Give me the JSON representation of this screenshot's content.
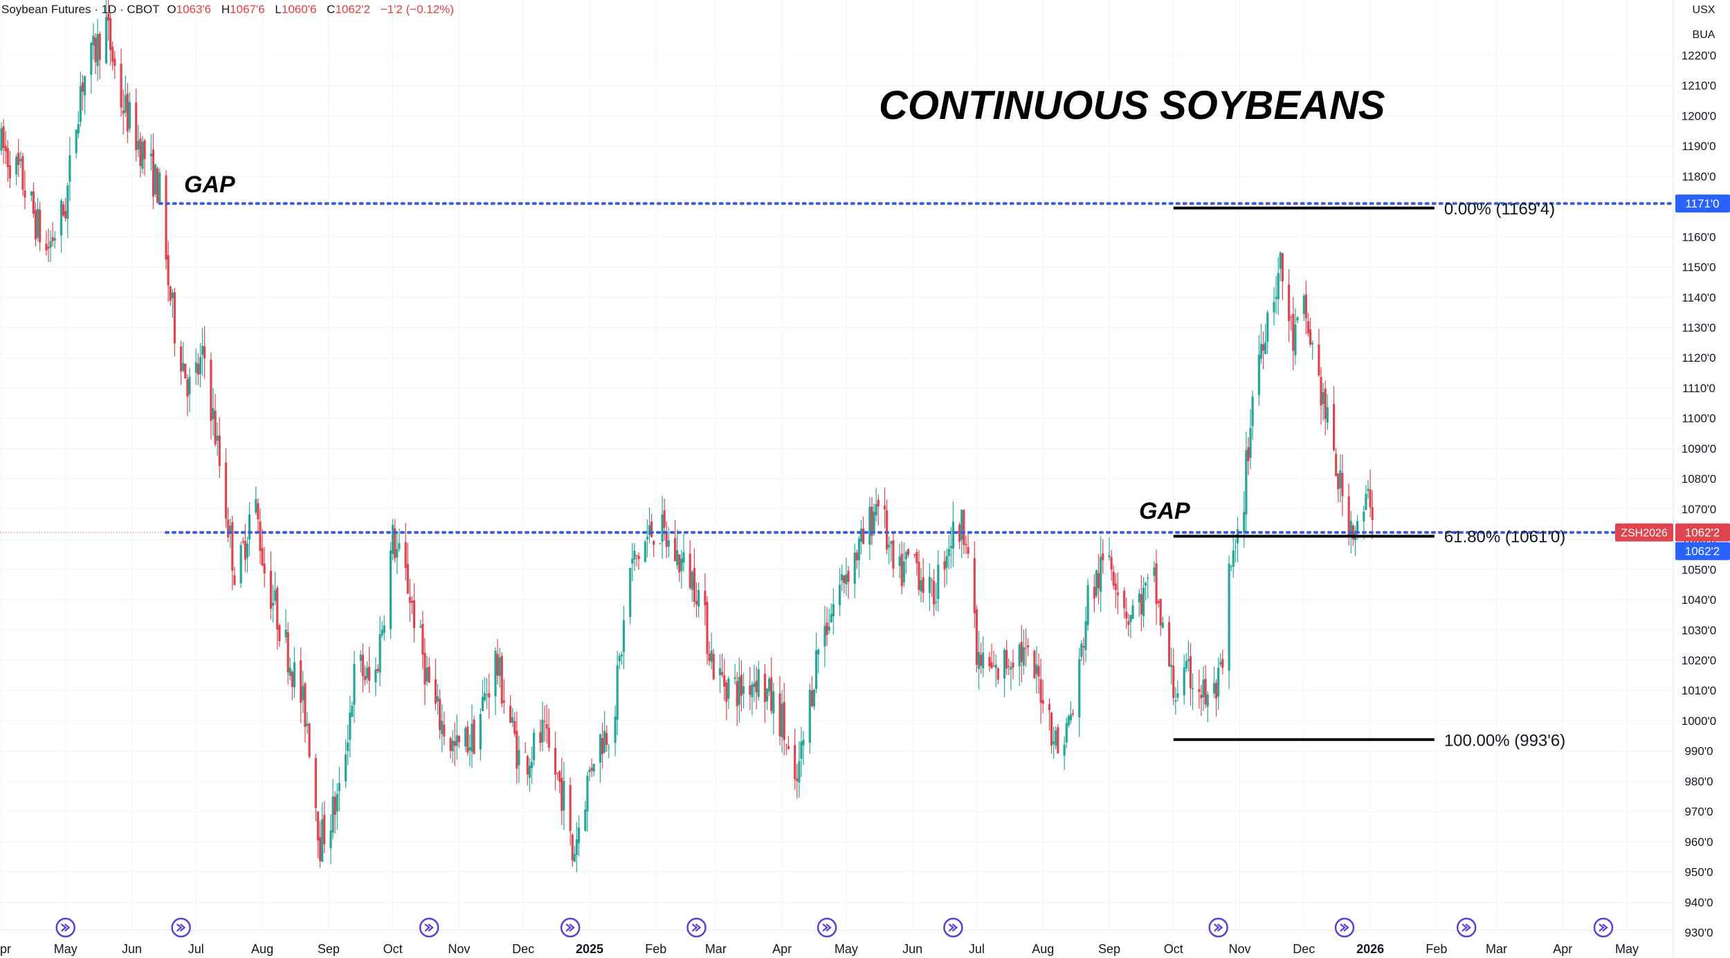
{
  "header": {
    "symbol": "Soybean Futures · 1D · CBOT",
    "open_label": "O",
    "open": "1063'6",
    "high_label": "H",
    "high": "1067'6",
    "low_label": "L",
    "low": "1060'6",
    "close_label": "C",
    "close": "1062'2",
    "change": "−1'2 (−0.12%)"
  },
  "scale_tags": {
    "currency": "USX",
    "unit": "BUA"
  },
  "colors": {
    "up": "#26a69a",
    "down": "#e0444e",
    "gap_line": "#3d5bd9",
    "fib_line": "#000000",
    "price_badge": "#e0444e",
    "blue_badge": "#2962ff",
    "event_icon": "#5b3fd6"
  },
  "chart_data": {
    "type": "candlestick",
    "title": "CONTINUOUS SOYBEANS",
    "y_axis": {
      "min": 930,
      "max": 1225,
      "side": "right",
      "ticks": [
        "1220'0",
        "1210'0",
        "1200'0",
        "1190'0",
        "1180'0",
        "1170'0",
        "1160'0",
        "1150'0",
        "1140'0",
        "1130'0",
        "1120'0",
        "1110'0",
        "1100'0",
        "1090'0",
        "1080'0",
        "1070'0",
        "1060'0",
        "1050'0",
        "1040'0",
        "1030'0",
        "1020'0",
        "1010'0",
        "1000'0",
        "990'0",
        "980'0",
        "970'0",
        "960'0",
        "950'0",
        "940'0",
        "930'0"
      ],
      "tick_values": [
        1220,
        1210,
        1200,
        1190,
        1180,
        1170,
        1160,
        1150,
        1140,
        1130,
        1120,
        1110,
        1100,
        1090,
        1080,
        1070,
        1060,
        1050,
        1040,
        1030,
        1020,
        1010,
        1000,
        990,
        980,
        970,
        960,
        950,
        940,
        930
      ]
    },
    "x_axis": {
      "start": "2024-04-01",
      "end": "2026-05-31",
      "labels": [
        {
          "text": "Apr",
          "date": "2024-04-01"
        },
        {
          "text": "May",
          "date": "2024-05-01"
        },
        {
          "text": "Jun",
          "date": "2024-06-01"
        },
        {
          "text": "Jul",
          "date": "2024-07-01"
        },
        {
          "text": "Aug",
          "date": "2024-08-01"
        },
        {
          "text": "Sep",
          "date": "2024-09-01"
        },
        {
          "text": "Oct",
          "date": "2024-10-01"
        },
        {
          "text": "Nov",
          "date": "2024-11-01"
        },
        {
          "text": "Dec",
          "date": "2024-12-01"
        },
        {
          "text": "2025",
          "date": "2025-01-01",
          "bold": true
        },
        {
          "text": "Feb",
          "date": "2025-02-01"
        },
        {
          "text": "Mar",
          "date": "2025-03-01"
        },
        {
          "text": "Apr",
          "date": "2025-04-01"
        },
        {
          "text": "May",
          "date": "2025-05-01"
        },
        {
          "text": "Jun",
          "date": "2025-06-01"
        },
        {
          "text": "Jul",
          "date": "2025-07-01"
        },
        {
          "text": "Aug",
          "date": "2025-08-01"
        },
        {
          "text": "Sep",
          "date": "2025-09-01"
        },
        {
          "text": "Oct",
          "date": "2025-10-01"
        },
        {
          "text": "Nov",
          "date": "2025-11-01"
        },
        {
          "text": "Dec",
          "date": "2025-12-01"
        },
        {
          "text": "2026",
          "date": "2026-01-01",
          "bold": true
        },
        {
          "text": "Feb",
          "date": "2026-02-01"
        },
        {
          "text": "Mar",
          "date": "2026-03-01"
        },
        {
          "text": "Apr",
          "date": "2026-04-01"
        },
        {
          "text": "May",
          "date": "2026-05-01"
        }
      ]
    },
    "path_anchors": [
      [
        "2024-04-01",
        1190
      ],
      [
        "2024-04-10",
        1180
      ],
      [
        "2024-04-22",
        1155
      ],
      [
        "2024-05-01",
        1170
      ],
      [
        "2024-05-08",
        1210
      ],
      [
        "2024-05-20",
        1230
      ],
      [
        "2024-05-27",
        1205
      ],
      [
        "2024-06-05",
        1190
      ],
      [
        "2024-06-14",
        1175
      ],
      [
        "2024-06-17",
        1150
      ],
      [
        "2024-06-21",
        1130
      ],
      [
        "2024-06-28",
        1110
      ],
      [
        "2024-07-05",
        1120
      ],
      [
        "2024-07-12",
        1085
      ],
      [
        "2024-07-20",
        1045
      ],
      [
        "2024-07-28",
        1075
      ],
      [
        "2024-08-02",
        1050
      ],
      [
        "2024-08-12",
        1025
      ],
      [
        "2024-08-22",
        1000
      ],
      [
        "2024-08-28",
        960
      ],
      [
        "2024-09-06",
        975
      ],
      [
        "2024-09-14",
        1020
      ],
      [
        "2024-09-22",
        1010
      ],
      [
        "2024-10-01",
        1060
      ],
      [
        "2024-10-08",
        1045
      ],
      [
        "2024-10-20",
        1005
      ],
      [
        "2024-10-30",
        990
      ],
      [
        "2024-11-08",
        995
      ],
      [
        "2024-11-18",
        1020
      ],
      [
        "2024-11-30",
        985
      ],
      [
        "2024-12-10",
        995
      ],
      [
        "2024-12-20",
        975
      ],
      [
        "2024-12-24",
        955
      ],
      [
        "2025-01-03",
        990
      ],
      [
        "2025-01-12",
        1000
      ],
      [
        "2025-01-20",
        1050
      ],
      [
        "2025-02-01",
        1065
      ],
      [
        "2025-02-10",
        1055
      ],
      [
        "2025-02-20",
        1045
      ],
      [
        "2025-03-01",
        1015
      ],
      [
        "2025-03-12",
        1010
      ],
      [
        "2025-03-20",
        1015
      ],
      [
        "2025-04-01",
        1000
      ],
      [
        "2025-04-07",
        975
      ],
      [
        "2025-04-18",
        1025
      ],
      [
        "2025-05-01",
        1050
      ],
      [
        "2025-05-10",
        1060
      ],
      [
        "2025-05-16",
        1075
      ],
      [
        "2025-05-24",
        1045
      ],
      [
        "2025-06-01",
        1055
      ],
      [
        "2025-06-10",
        1040
      ],
      [
        "2025-06-18",
        1060
      ],
      [
        "2025-06-26",
        1065
      ],
      [
        "2025-07-01",
        1020
      ],
      [
        "2025-07-10",
        1015
      ],
      [
        "2025-07-20",
        1025
      ],
      [
        "2025-08-01",
        1010
      ],
      [
        "2025-08-08",
        990
      ],
      [
        "2025-08-16",
        1005
      ],
      [
        "2025-08-22",
        1040
      ],
      [
        "2025-09-01",
        1055
      ],
      [
        "2025-09-10",
        1035
      ],
      [
        "2025-09-22",
        1045
      ],
      [
        "2025-10-01",
        1010
      ],
      [
        "2025-10-10",
        1015
      ],
      [
        "2025-10-18",
        1005
      ],
      [
        "2025-10-24",
        1015
      ],
      [
        "2025-10-26",
        1045
      ],
      [
        "2025-11-01",
        1060
      ],
      [
        "2025-11-03",
        1075
      ],
      [
        "2025-11-08",
        1115
      ],
      [
        "2025-11-14",
        1135
      ],
      [
        "2025-11-20",
        1150
      ],
      [
        "2025-11-26",
        1125
      ],
      [
        "2025-12-01",
        1135
      ],
      [
        "2025-12-06",
        1120
      ],
      [
        "2025-12-14",
        1090
      ],
      [
        "2025-12-20",
        1070
      ],
      [
        "2025-12-26",
        1062
      ],
      [
        "2026-01-01",
        1075
      ],
      [
        "2026-01-04",
        1062
      ]
    ],
    "gaps": [
      {
        "label": "GAP",
        "value": 1171,
        "start": "2024-06-14",
        "badge": "1171'0"
      },
      {
        "label": "GAP",
        "value": 1062.25,
        "start": "2024-06-17",
        "badge": "1062'2"
      }
    ],
    "current_price": {
      "symbol": "ZSH2026",
      "value": 1062.25,
      "label": "1062'2"
    },
    "fibonacci": {
      "start": "2025-10-01",
      "end": "2026-01-31",
      "levels": [
        {
          "label": "0.00% (1169'4)",
          "value": 1169.5
        },
        {
          "label": "61.80% (1061'0)",
          "value": 1061
        },
        {
          "label": "100.00% (993'6)",
          "value": 993.75
        }
      ]
    },
    "event_icon_dates": [
      "2024-05-01",
      "2024-06-24",
      "2024-10-18",
      "2024-12-23",
      "2025-02-20",
      "2025-04-22",
      "2025-06-20",
      "2025-10-22",
      "2025-12-20",
      "2026-02-15",
      "2026-04-20"
    ]
  }
}
